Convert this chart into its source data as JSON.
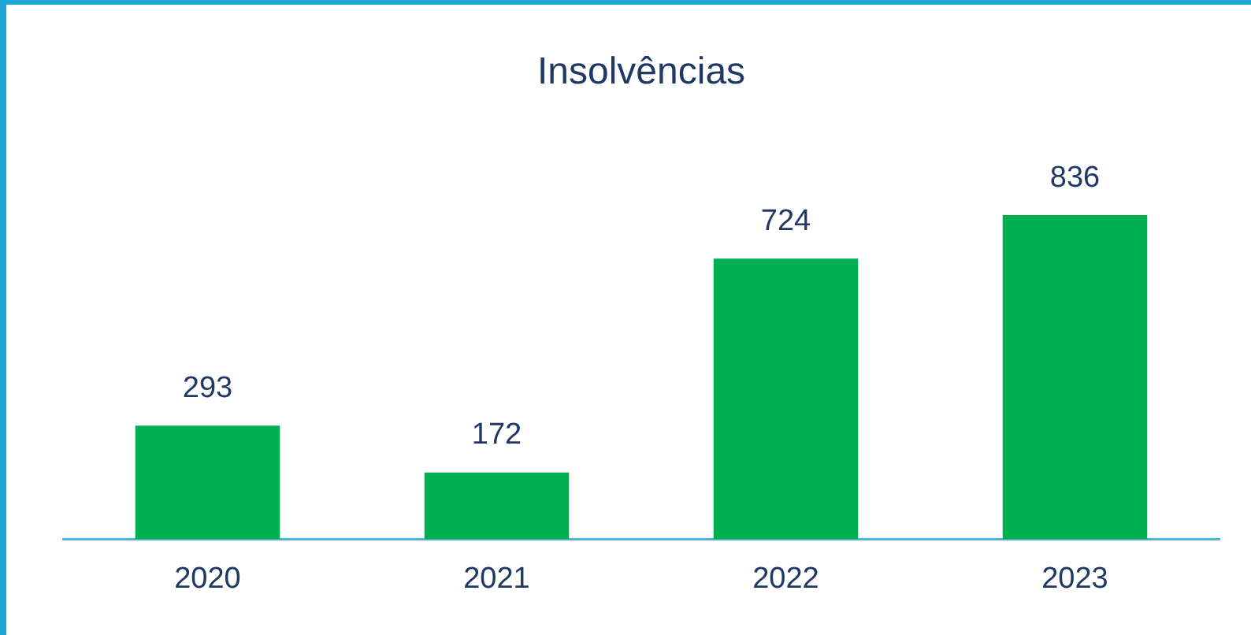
{
  "chart_data": {
    "type": "bar",
    "title": "Insolvências",
    "categories": [
      "2020",
      "2021",
      "2022",
      "2023"
    ],
    "values": [
      293,
      172,
      724,
      836
    ],
    "color": "#00b050",
    "data_labels": true,
    "grid": false,
    "legend": false
  }
}
